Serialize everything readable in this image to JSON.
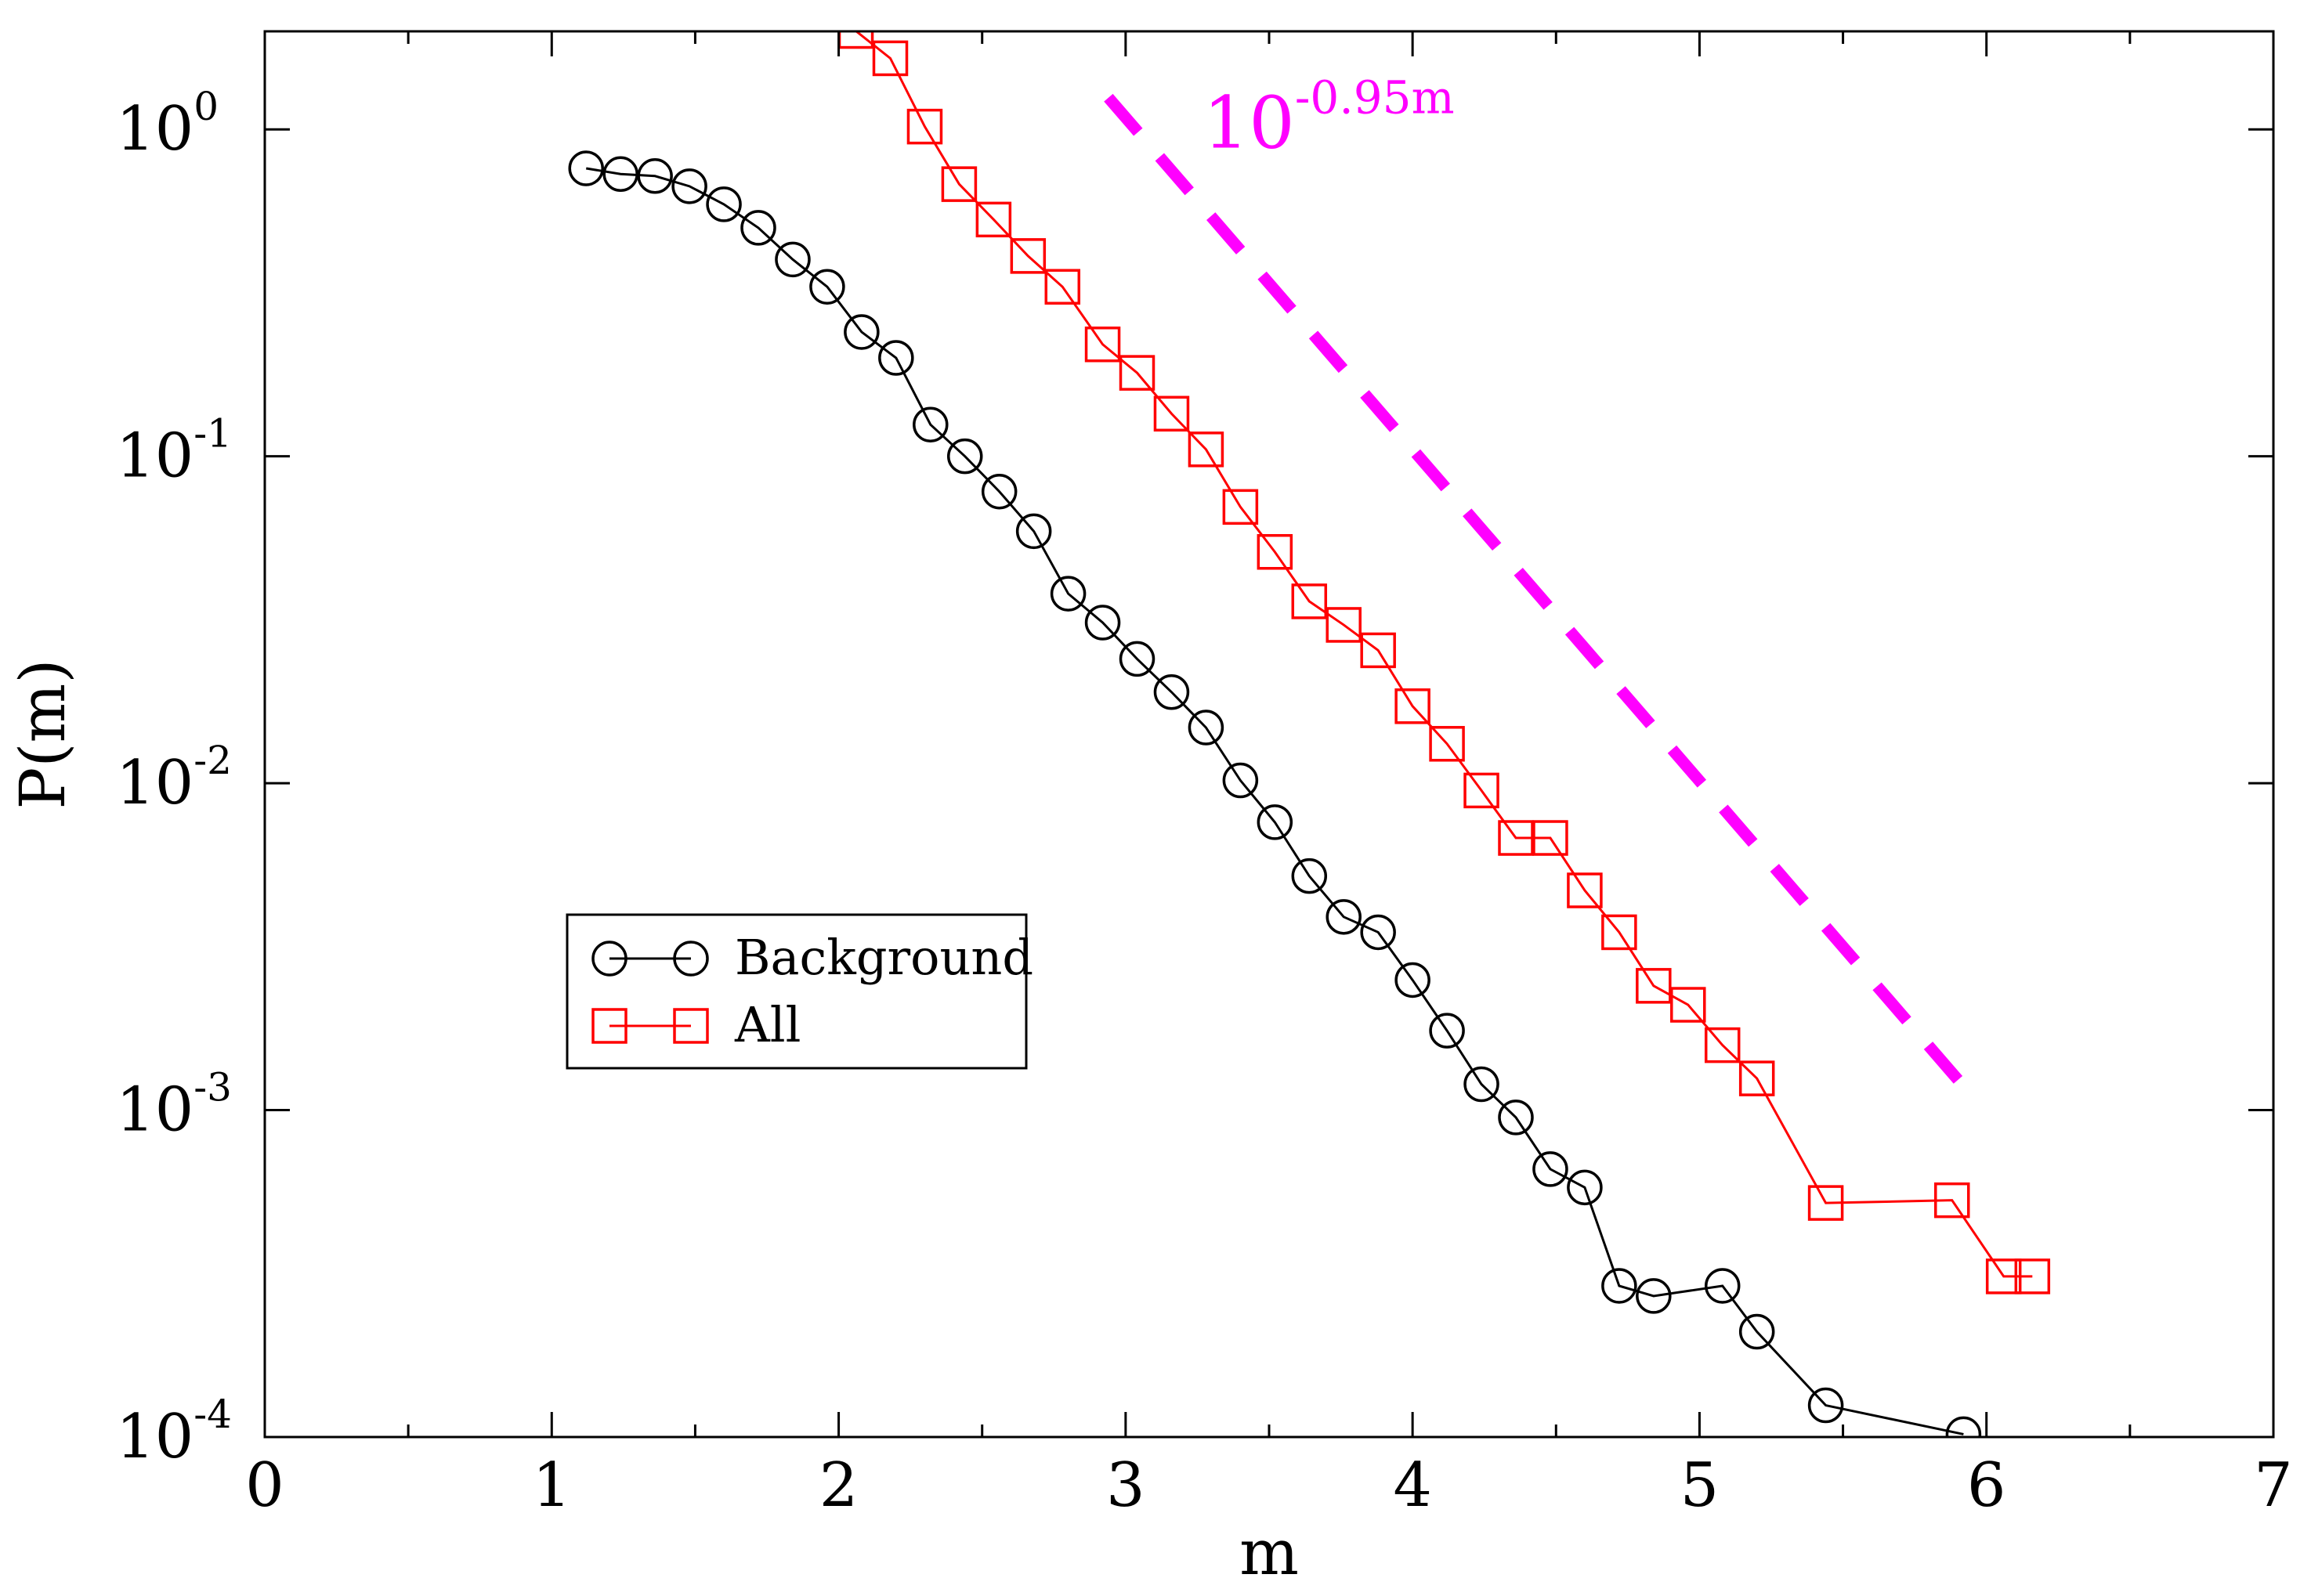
{
  "chart_data": {
    "type": "line",
    "title": "",
    "xlabel": "m",
    "ylabel": "P(m)",
    "xlim": [
      0,
      7
    ],
    "ylim_log10": [
      -4,
      0.3
    ],
    "y_scale": "log",
    "x_ticks": [
      "0",
      "1",
      "2",
      "3",
      "4",
      "5",
      "6",
      "7"
    ],
    "y_ticks": [
      {
        "base": "10",
        "exp": "0",
        "value": 1
      },
      {
        "base": "10",
        "exp": "-1",
        "value": 0.1
      },
      {
        "base": "10",
        "exp": "-2",
        "value": 0.01
      },
      {
        "base": "10",
        "exp": "-3",
        "value": 0.001
      },
      {
        "base": "10",
        "exp": "-4",
        "value": 0.0001
      }
    ],
    "grid": false,
    "legend_position": "center-left",
    "series": [
      {
        "name": "Background",
        "marker": "circle",
        "color": "#000000",
        "points": [
          [
            1.12,
            0.76
          ],
          [
            1.24,
            0.73
          ],
          [
            1.36,
            0.72
          ],
          [
            1.48,
            0.67
          ],
          [
            1.6,
            0.59
          ],
          [
            1.72,
            0.5
          ],
          [
            1.84,
            0.4
          ],
          [
            1.96,
            0.33
          ],
          [
            2.08,
            0.24
          ],
          [
            2.2,
            0.2
          ],
          [
            2.32,
            0.125
          ],
          [
            2.44,
            0.1
          ],
          [
            2.56,
            0.078
          ],
          [
            2.68,
            0.059
          ],
          [
            2.8,
            0.038
          ],
          [
            2.92,
            0.031
          ],
          [
            3.04,
            0.024
          ],
          [
            3.16,
            0.019
          ],
          [
            3.28,
            0.0148
          ],
          [
            3.4,
            0.0102
          ],
          [
            3.52,
            0.0076
          ],
          [
            3.64,
            0.0052
          ],
          [
            3.76,
            0.0039
          ],
          [
            3.88,
            0.0035
          ],
          [
            4.0,
            0.0025
          ],
          [
            4.12,
            0.00175
          ],
          [
            4.24,
            0.0012
          ],
          [
            4.36,
            0.00095
          ],
          [
            4.48,
            0.00066
          ],
          [
            4.6,
            0.00058
          ],
          [
            4.72,
            0.00029
          ],
          [
            4.84,
            0.00027
          ],
          [
            5.08,
            0.00029
          ],
          [
            5.2,
            0.00021
          ],
          [
            5.44,
            0.000125
          ],
          [
            5.92,
            0.000102
          ]
        ]
      },
      {
        "name": "All",
        "marker": "square",
        "color": "#ff0000",
        "points": [
          [
            2.06,
            2.0
          ],
          [
            2.18,
            1.65
          ],
          [
            2.3,
            1.02
          ],
          [
            2.42,
            0.68
          ],
          [
            2.54,
            0.53
          ],
          [
            2.66,
            0.41
          ],
          [
            2.78,
            0.33
          ],
          [
            2.92,
            0.22
          ],
          [
            3.04,
            0.18
          ],
          [
            3.16,
            0.135
          ],
          [
            3.28,
            0.105
          ],
          [
            3.4,
            0.07
          ],
          [
            3.52,
            0.051
          ],
          [
            3.64,
            0.036
          ],
          [
            3.76,
            0.0305
          ],
          [
            3.88,
            0.0255
          ],
          [
            4.0,
            0.0172
          ],
          [
            4.12,
            0.0132
          ],
          [
            4.24,
            0.0095
          ],
          [
            4.36,
            0.0068
          ],
          [
            4.48,
            0.0068
          ],
          [
            4.6,
            0.0047
          ],
          [
            4.72,
            0.0035
          ],
          [
            4.84,
            0.0024
          ],
          [
            4.96,
            0.0021
          ],
          [
            5.08,
            0.00158
          ],
          [
            5.2,
            0.00125
          ],
          [
            5.44,
            0.00052
          ],
          [
            5.88,
            0.00053
          ],
          [
            6.06,
            0.00031
          ],
          [
            6.16,
            0.00031
          ]
        ]
      },
      {
        "name": "10^-0.95m",
        "style": "dashed",
        "color": "#ff00ff",
        "points": [
          [
            2.94,
            1.25
          ],
          [
            5.94,
            0.00113
          ]
        ]
      }
    ],
    "annotations": [
      {
        "base": "10",
        "exp": "-0.95m",
        "color": "#ff00ff",
        "at": [
          3.27,
          0.88
        ]
      }
    ]
  }
}
